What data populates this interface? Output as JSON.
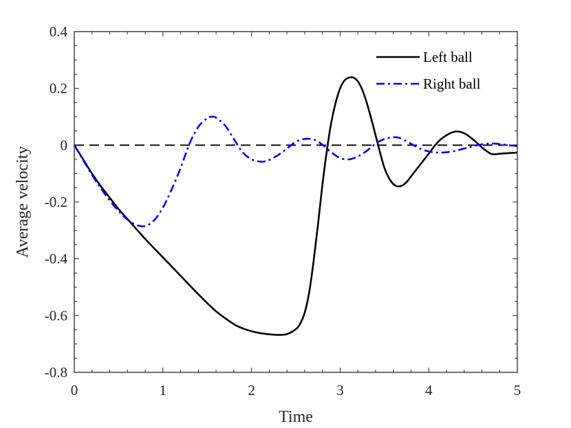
{
  "chart_data": {
    "type": "line",
    "xlabel": "Time",
    "ylabel": "Average velocity",
    "xlim": [
      0,
      5
    ],
    "ylim": [
      -0.8,
      0.4
    ],
    "xticks": [
      0,
      1,
      2,
      3,
      4,
      5
    ],
    "yticks": [
      -0.8,
      -0.6,
      -0.4,
      -0.2,
      0,
      0.2,
      0.4
    ],
    "xtick_labels": [
      "0",
      "1",
      "2",
      "3",
      "4",
      "5"
    ],
    "ytick_labels": [
      "-0.8",
      "-0.6",
      "-0.4",
      "-0.2",
      "0",
      "0.2",
      "0.4"
    ],
    "grid": false,
    "legend_position": "top-right",
    "reference_line": {
      "y": 0,
      "style": "dashed",
      "color": "#000000"
    },
    "series": [
      {
        "name": "Left ball",
        "color": "#000000",
        "style": "solid",
        "x": [
          0,
          0.1,
          0.2,
          0.3,
          0.4,
          0.5,
          0.6,
          0.8,
          1.0,
          1.2,
          1.4,
          1.6,
          1.8,
          1.9,
          2.0,
          2.1,
          2.2,
          2.3,
          2.4,
          2.5,
          2.55,
          2.6,
          2.65,
          2.7,
          2.75,
          2.8,
          2.85,
          2.9,
          2.95,
          3.0,
          3.05,
          3.1,
          3.15,
          3.2,
          3.25,
          3.3,
          3.35,
          3.4,
          3.45,
          3.5,
          3.55,
          3.6,
          3.65,
          3.7,
          3.75,
          3.8,
          3.85,
          3.9,
          4.0,
          4.1,
          4.2,
          4.3,
          4.4,
          4.5,
          4.6,
          4.65,
          4.7,
          4.75,
          4.8,
          4.9,
          5.0
        ],
        "y": [
          0,
          -0.05,
          -0.1,
          -0.145,
          -0.185,
          -0.225,
          -0.26,
          -0.33,
          -0.395,
          -0.46,
          -0.525,
          -0.585,
          -0.63,
          -0.645,
          -0.655,
          -0.662,
          -0.666,
          -0.668,
          -0.665,
          -0.648,
          -0.628,
          -0.59,
          -0.52,
          -0.41,
          -0.28,
          -0.14,
          -0.02,
          0.08,
          0.15,
          0.2,
          0.228,
          0.238,
          0.238,
          0.225,
          0.195,
          0.15,
          0.095,
          0.035,
          -0.025,
          -0.08,
          -0.115,
          -0.137,
          -0.145,
          -0.142,
          -0.13,
          -0.11,
          -0.09,
          -0.07,
          -0.03,
          0.01,
          0.035,
          0.048,
          0.042,
          0.02,
          -0.008,
          -0.02,
          -0.03,
          -0.032,
          -0.03,
          -0.028,
          -0.026
        ]
      },
      {
        "name": "Right ball",
        "color": "#0000ff",
        "style": "dash-dot",
        "x": [
          0,
          0.1,
          0.2,
          0.3,
          0.4,
          0.5,
          0.6,
          0.7,
          0.8,
          0.9,
          1.0,
          1.1,
          1.2,
          1.3,
          1.4,
          1.5,
          1.55,
          1.6,
          1.7,
          1.8,
          1.9,
          2.0,
          2.1,
          2.15,
          2.2,
          2.3,
          2.4,
          2.5,
          2.6,
          2.7,
          2.8,
          2.9,
          3.0,
          3.1,
          3.2,
          3.3,
          3.4,
          3.5,
          3.6,
          3.65,
          3.7,
          3.8,
          3.9,
          4.0,
          4.1,
          4.2,
          4.3,
          4.4,
          4.5,
          4.6,
          4.7,
          4.8,
          4.9,
          5.0
        ],
        "y": [
          0,
          -0.052,
          -0.105,
          -0.152,
          -0.195,
          -0.232,
          -0.262,
          -0.281,
          -0.285,
          -0.265,
          -0.22,
          -0.155,
          -0.08,
          0.005,
          0.065,
          0.095,
          0.1,
          0.097,
          0.07,
          0.022,
          -0.025,
          -0.05,
          -0.058,
          -0.057,
          -0.052,
          -0.035,
          -0.012,
          0.012,
          0.022,
          0.02,
          0.002,
          -0.025,
          -0.045,
          -0.05,
          -0.04,
          -0.02,
          0.005,
          0.022,
          0.028,
          0.027,
          0.022,
          0.005,
          -0.012,
          -0.022,
          -0.026,
          -0.025,
          -0.02,
          -0.012,
          -0.004,
          0.003,
          0.006,
          0.004,
          0.0,
          -0.003
        ]
      }
    ]
  }
}
